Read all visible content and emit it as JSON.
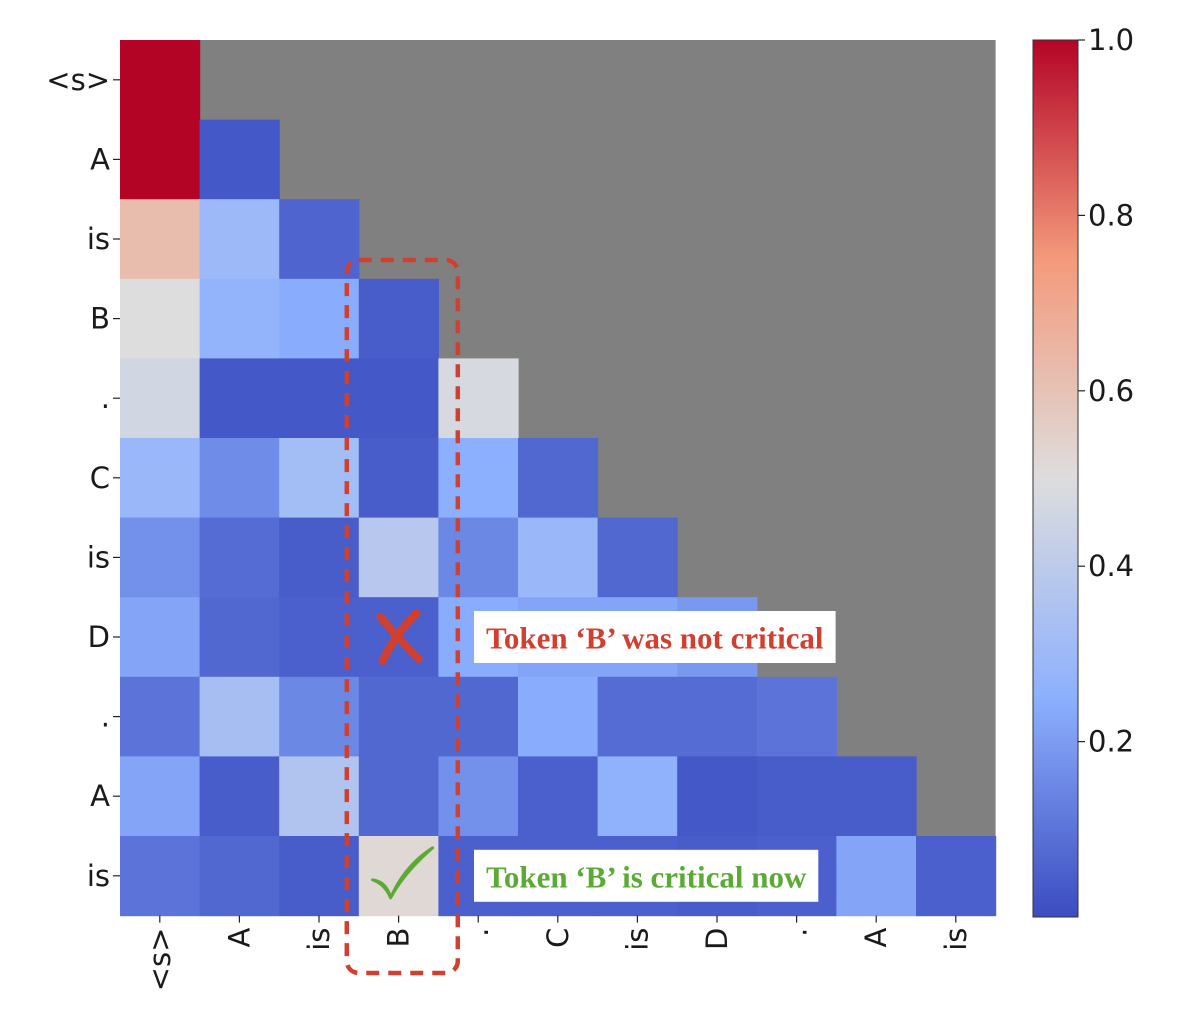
{
  "chart_data": {
    "type": "heatmap",
    "title": "",
    "xlabel": "",
    "ylabel": "",
    "x_tokens": [
      "<s>",
      "A",
      "is",
      "B",
      ".",
      "C",
      "is",
      "D",
      ".",
      "A",
      "is"
    ],
    "y_tokens": [
      "<s>",
      "A",
      "is",
      "B",
      ".",
      "C",
      "is",
      "D",
      ".",
      "A",
      "is"
    ],
    "masked_region": "upper-triangle",
    "mask_color": "#808080",
    "colormap": "coolwarm",
    "color_range": [
      0.0,
      1.0
    ],
    "colorbar_ticks": [
      "1.0",
      "0.8",
      "0.6",
      "0.4",
      "0.2"
    ],
    "colorbar_tick_values": [
      1.0,
      0.8,
      0.6,
      0.4,
      0.2
    ],
    "matrix": [
      [
        1.0,
        null,
        null,
        null,
        null,
        null,
        null,
        null,
        null,
        null,
        null
      ],
      [
        1.0,
        0.03,
        null,
        null,
        null,
        null,
        null,
        null,
        null,
        null,
        null
      ],
      [
        0.62,
        0.3,
        0.06,
        null,
        null,
        null,
        null,
        null,
        null,
        null,
        null
      ],
      [
        0.5,
        0.27,
        0.24,
        0.04,
        null,
        null,
        null,
        null,
        null,
        null,
        null
      ],
      [
        0.46,
        0.03,
        0.03,
        0.03,
        0.48,
        null,
        null,
        null,
        null,
        null,
        null
      ],
      [
        0.29,
        0.16,
        0.32,
        0.04,
        0.25,
        0.07,
        null,
        null,
        null,
        null,
        null
      ],
      [
        0.17,
        0.08,
        0.04,
        0.38,
        0.15,
        0.29,
        0.07,
        null,
        null,
        null,
        null
      ],
      [
        0.22,
        0.07,
        0.05,
        0.05,
        0.24,
        0.22,
        0.22,
        0.19,
        null,
        null,
        null
      ],
      [
        0.1,
        0.33,
        0.15,
        0.07,
        0.07,
        0.24,
        0.08,
        0.08,
        0.1,
        null,
        null
      ],
      [
        0.22,
        0.04,
        0.36,
        0.07,
        0.17,
        0.05,
        0.26,
        0.03,
        0.04,
        0.04,
        null
      ],
      [
        0.1,
        0.07,
        0.04,
        0.52,
        0.05,
        0.05,
        0.05,
        0.04,
        0.05,
        0.22,
        0.05
      ]
    ],
    "annotations": [
      {
        "text": "Token ‘B’ was not critical",
        "color": "#d04030",
        "row": 7,
        "col": 3,
        "marker": "cross"
      },
      {
        "text": "Token ‘B’ is critical now",
        "color": "#5aaa35",
        "row": 10,
        "col": 3,
        "marker": "check"
      }
    ],
    "highlight": {
      "column": 3,
      "style": "dashed-rounded-box",
      "color": "#d04030"
    }
  }
}
